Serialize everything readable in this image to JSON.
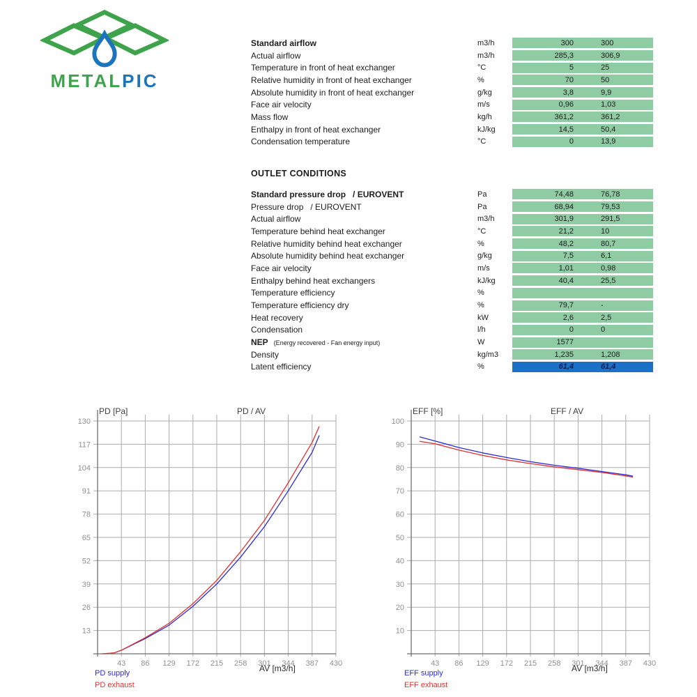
{
  "logo": {
    "text_green": "METAL",
    "text_blue": "PIC",
    "green": "#3fa34c",
    "blue": "#1c75bc"
  },
  "colors": {
    "cell_green": "#8fcba3",
    "cell_blue": "#1d70c7",
    "grid": "#ababab",
    "axis": "#6e6e6e",
    "tick_text": "#8f8f8f"
  },
  "inlet_table": {
    "rows": [
      {
        "label": "Standard airflow",
        "unit": "m3/h",
        "v1": "300",
        "v2": "300",
        "bold": true
      },
      {
        "label": "Actual airflow",
        "unit": "m3/h",
        "v1": "285,3",
        "v2": "306,9"
      },
      {
        "label": "Temperature in front of heat exchanger",
        "unit": "°C",
        "v1": "5",
        "v2": "25"
      },
      {
        "label": "Relative humidity in front of heat exchanger",
        "unit": "%",
        "v1": "70",
        "v2": "50"
      },
      {
        "label": "Absolute humidity in front of heat exchanger",
        "unit": "g/kg",
        "v1": "3,8",
        "v2": "9,9"
      },
      {
        "label": "Face air velocity",
        "unit": "m/s",
        "v1": "0,96",
        "v2": "1,03"
      },
      {
        "label": "Mass flow",
        "unit": "kg/h",
        "v1": "361,2",
        "v2": "361,2"
      },
      {
        "label": "Enthalpy in front of heat exchanger",
        "unit": "kJ/kg",
        "v1": "14,5",
        "v2": "50,4"
      },
      {
        "label": "Condensation temperature",
        "unit": "°C",
        "v1": "0",
        "v2": "13,9"
      }
    ]
  },
  "outlet_section": {
    "heading": "OUTLET CONDITIONS",
    "rows": [
      {
        "label": "Standard pressure drop   / EUROVENT",
        "unit": "Pa",
        "v1": "74,48",
        "v2": "76,78",
        "bold": true
      },
      {
        "label": "Pressure drop   / EUROVENT",
        "unit": "Pa",
        "v1": "68,94",
        "v2": "79,53"
      },
      {
        "label": "Actual airflow",
        "unit": "m3/h",
        "v1": "301,9",
        "v2": "291,5"
      },
      {
        "label": "Temperature behind heat exchanger",
        "unit": "°C",
        "v1": "21,2",
        "v2": "10"
      },
      {
        "label": "Relative humidity behind heat exchanger",
        "unit": "%",
        "v1": "48,2",
        "v2": "80,7"
      },
      {
        "label": "Absolute humidity behind heat exchanger",
        "unit": "g/kg",
        "v1": "7,5",
        "v2": "6,1"
      },
      {
        "label": "Face air velocity",
        "unit": "m/s",
        "v1": "1,01",
        "v2": "0,98"
      },
      {
        "label": "Enthalpy behind heat exchangers",
        "unit": "kJ/kg",
        "v1": "40,4",
        "v2": "25,5"
      },
      {
        "label": "Temperature efficiency",
        "unit": "%",
        "v1": "",
        "v2": ""
      },
      {
        "label": "Temperature efficiency dry",
        "unit": "%",
        "v1": "79,7",
        "v2": "-"
      },
      {
        "label": "Heat recovery",
        "unit": "kW",
        "v1": "2,6",
        "v2": "2,5"
      },
      {
        "label": "Condensation",
        "unit": "l/h",
        "v1": "0",
        "v2": "0"
      },
      {
        "label": "NEP",
        "note": "(Energy recovered - Fan energy input)",
        "unit": "W",
        "v1": "1577",
        "v2": "",
        "bold": true
      },
      {
        "label": "Density",
        "unit": "kg/m3",
        "v1": "1,235",
        "v2": "1,208"
      },
      {
        "label": "Latent efficiency",
        "unit": "%",
        "v1": "61,4",
        "v2": "61,4",
        "highlight": true
      }
    ]
  },
  "chart_data": [
    {
      "type": "line",
      "title": "PD / AV",
      "ylabel": "PD [Pa]",
      "xlabel": "AV [m3/h]",
      "xlim": [
        0,
        430
      ],
      "ylim": [
        0,
        130
      ],
      "xticks": [
        43,
        86,
        129,
        172,
        215,
        258,
        301,
        344,
        387,
        430
      ],
      "yticks": [
        13,
        26,
        39,
        52,
        65,
        78,
        91,
        104,
        117,
        130
      ],
      "grid": true,
      "legend_position": "bottom-left",
      "series": [
        {
          "name": "PD supply",
          "color": "#2b2bd0",
          "x": [
            30,
            43,
            86,
            129,
            172,
            215,
            258,
            301,
            344,
            387,
            400
          ],
          "y": [
            0.5,
            2,
            8.5,
            16,
            26.5,
            39,
            54,
            71,
            91,
            112.5,
            122
          ]
        },
        {
          "name": "PD exhaust",
          "color": "#de3030",
          "x": [
            8,
            30,
            43,
            86,
            129,
            172,
            215,
            258,
            301,
            344,
            387,
            400
          ],
          "y": [
            0,
            0.5,
            2,
            9,
            17,
            28,
            41,
            57,
            74.5,
            95.5,
            118,
            127
          ]
        }
      ]
    },
    {
      "type": "line",
      "title": "EFF / AV",
      "ylabel": "EFF [%]",
      "xlabel": "AV [m3/h]",
      "xlim": [
        0,
        430
      ],
      "ylim": [
        0,
        100
      ],
      "xticks": [
        43,
        86,
        129,
        172,
        215,
        258,
        301,
        344,
        387,
        430
      ],
      "yticks": [
        10,
        20,
        30,
        40,
        50,
        60,
        70,
        80,
        90,
        100
      ],
      "grid": true,
      "legend_position": "bottom-left",
      "series": [
        {
          "name": "EFF supply",
          "color": "#2b2bd0",
          "x": [
            15,
            43,
            86,
            129,
            172,
            215,
            258,
            301,
            344,
            387,
            400
          ],
          "y": [
            93.2,
            91.4,
            88.6,
            86.3,
            84.3,
            82.5,
            81,
            79.7,
            78.3,
            76.9,
            76.3
          ]
        },
        {
          "name": "EFF exhaust",
          "color": "#de3030",
          "x": [
            15,
            43,
            86,
            129,
            172,
            215,
            258,
            301,
            344,
            387,
            400
          ],
          "y": [
            91.3,
            90.2,
            87.5,
            85.2,
            83.3,
            81.7,
            80.3,
            79.1,
            77.9,
            76.4,
            75.9
          ]
        }
      ]
    }
  ]
}
